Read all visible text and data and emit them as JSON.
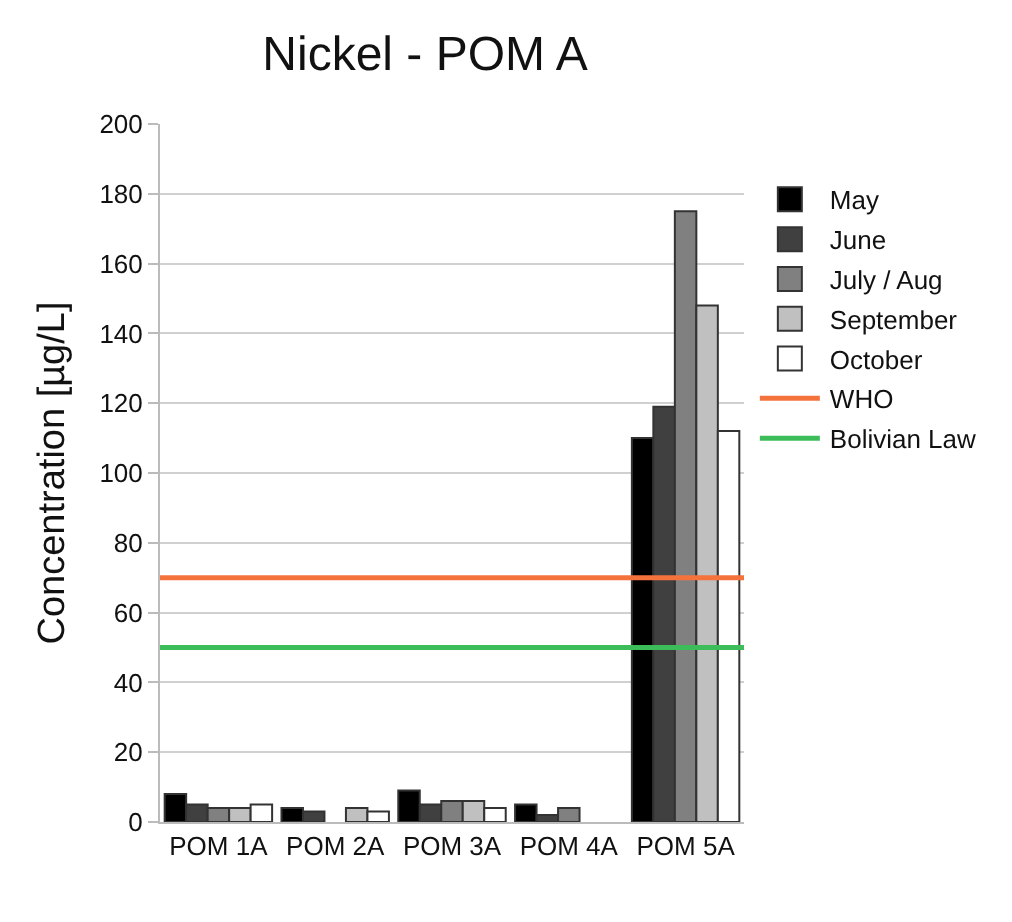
{
  "chart_data": {
    "type": "bar",
    "title": "Nickel - POM A",
    "ylabel": "Concentration [µg/L]",
    "categories": [
      "POM 1A",
      "POM 2A",
      "POM 3A",
      "POM 4A",
      "POM 5A"
    ],
    "series": [
      {
        "name": "May",
        "color": "#000000",
        "values": [
          8,
          4,
          9,
          5,
          110
        ]
      },
      {
        "name": "June",
        "color": "#404040",
        "values": [
          5,
          3,
          5,
          2,
          119
        ]
      },
      {
        "name": "July / Aug",
        "color": "#808080",
        "values": [
          4,
          null,
          6,
          4,
          175
        ]
      },
      {
        "name": "September",
        "color": "#c0c0c0",
        "values": [
          4,
          4,
          6,
          null,
          148
        ]
      },
      {
        "name": "October",
        "color": "#ffffff",
        "values": [
          5,
          3,
          4,
          null,
          112
        ]
      }
    ],
    "ref_lines": [
      {
        "axis": "y",
        "value": 70,
        "label": "WHO",
        "color": "#f4733c"
      },
      {
        "axis": "y",
        "value": 50,
        "label": "Bolivian Law",
        "color": "#3cbd5a"
      }
    ],
    "ylim": [
      0,
      200
    ],
    "yticks": [
      0,
      20,
      40,
      60,
      80,
      100,
      120,
      140,
      160,
      180,
      200
    ],
    "grid": "y",
    "legend": "right"
  }
}
